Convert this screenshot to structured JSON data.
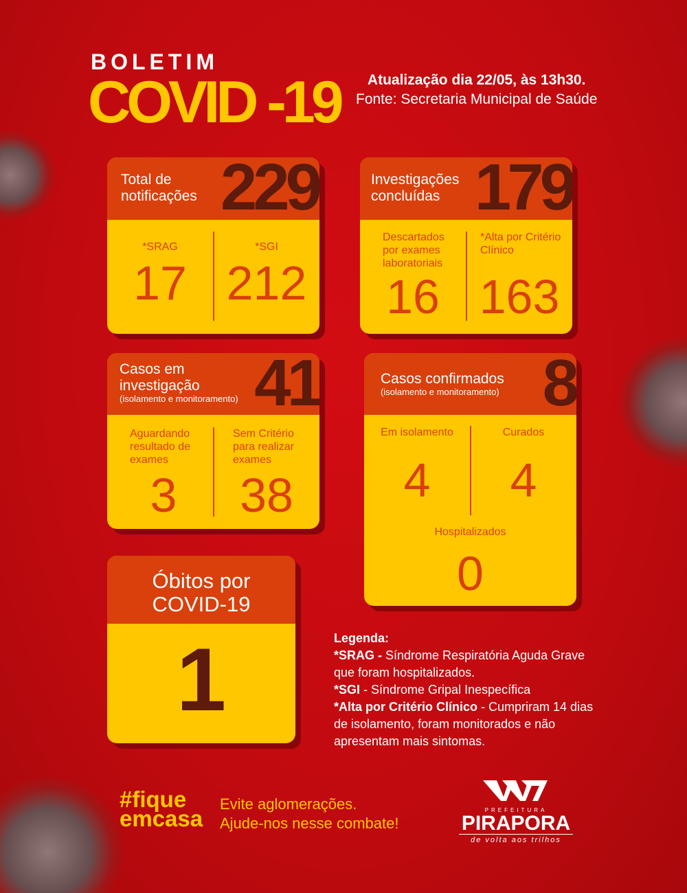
{
  "header": {
    "kicker": "BOLETIM",
    "title": "COVID -19",
    "update": "Atualização dia 22/05, às 13h30.",
    "source": "Fonte: Secretaria Municipal de Saúde"
  },
  "cards": {
    "notificacoes": {
      "title_1": "Total de",
      "title_2": "notificações",
      "total": "229",
      "items": [
        {
          "label": "*SRAG",
          "value": "17"
        },
        {
          "label": "*SGI",
          "value": "212"
        }
      ]
    },
    "investigacoes": {
      "title_1": "Investigações",
      "title_2": "concluídas",
      "total": "179",
      "items": [
        {
          "label": "Descartados por exames laboratoriais",
          "value": "16"
        },
        {
          "label": "*Alta por Critério Clínico",
          "value": "163"
        }
      ]
    },
    "investigacao": {
      "title_1": "Casos em",
      "title_2": "investigação",
      "subtitle": "(isolamento e monitoramento)",
      "total": "41",
      "items": [
        {
          "label": "Aguardando resultado de exames",
          "value": "3"
        },
        {
          "label": "Sem Critério para realizar exames",
          "value": "38"
        }
      ]
    },
    "confirmados": {
      "title": "Casos confirmados",
      "subtitle": "(isolamento e monitoramento)",
      "total": "8",
      "items": [
        {
          "label": "Em isolamento",
          "value": "4"
        },
        {
          "label": "Curados",
          "value": "4"
        },
        {
          "label": "Hospitalizados",
          "value": "0"
        }
      ]
    },
    "obitos": {
      "title_1": "Óbitos por",
      "title_2": "COVID-19",
      "total": "1"
    }
  },
  "legend": {
    "heading": "Legenda:",
    "srag_key": "*SRAG -",
    "srag_text": " Síndrome Respiratória Aguda Grave que foram hospitalizados.",
    "sgi_key": "*SGI",
    "sgi_text": " - Síndrome Gripal Inespecífica",
    "alta_key": "*Alta por Critério Clínico",
    "alta_text": " - Cumpriram 14 dias de isolamento, foram monitorados e não apresentam mais sintomas."
  },
  "footer": {
    "hashtag_1": "#fique",
    "hashtag_2": "emcasa",
    "message_1": "Evite aglomerações.",
    "message_2": "Ajude-nos nesse combate!",
    "logo_top": "PREFEITURA",
    "logo_name": "PIRAPORA",
    "logo_tagline": "de volta aos trilhos"
  },
  "colors": {
    "background": "#c00a0f",
    "card_header": "#d9400c",
    "card_body": "#ffc700",
    "big_number": "#5e1a0a"
  }
}
